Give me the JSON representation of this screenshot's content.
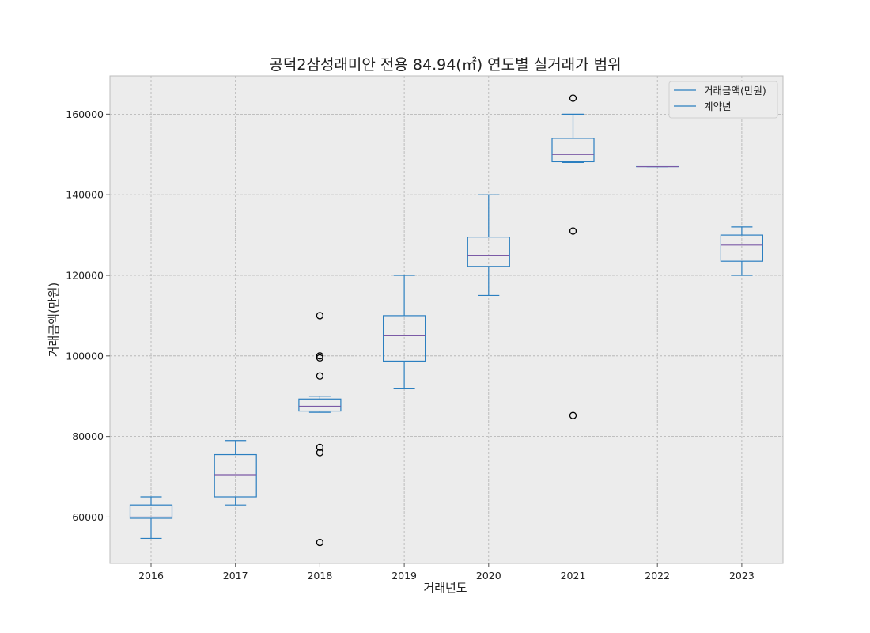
{
  "chart_data": {
    "type": "box",
    "title": "공덕2삼성래미안 전용 84.94(㎡) 연도별 실거래가 범위",
    "xlabel": "거래년도",
    "ylabel": "거래금액(만원)",
    "categories": [
      "2016",
      "2017",
      "2018",
      "2019",
      "2020",
      "2021",
      "2022",
      "2023"
    ],
    "ylim": [
      48500,
      169500
    ],
    "yticks": [
      60000,
      80000,
      100000,
      120000,
      140000,
      160000
    ],
    "ytick_labels": [
      "60000",
      "80000",
      "100000",
      "120000",
      "140000",
      "160000"
    ],
    "grid": true,
    "legend_position": "top-right",
    "legend": [
      "거래금액(만원)",
      "계약년"
    ],
    "boxes": [
      {
        "category": "2016",
        "whislo": 54700,
        "q1": 59700,
        "med": 60000,
        "q3": 63000,
        "whishi": 65000,
        "fliers": []
      },
      {
        "category": "2017",
        "whislo": 63000,
        "q1": 65000,
        "med": 70500,
        "q3": 75500,
        "whishi": 79000,
        "fliers": []
      },
      {
        "category": "2018",
        "whislo": 86000,
        "q1": 86300,
        "med": 87500,
        "q3": 89300,
        "whishi": 90000,
        "fliers": [
          110000,
          100000,
          99500,
          95000,
          77300,
          76000,
          53700
        ]
      },
      {
        "category": "2019",
        "whislo": 92000,
        "q1": 98700,
        "med": 105000,
        "q3": 110000,
        "whishi": 120000,
        "fliers": []
      },
      {
        "category": "2020",
        "whislo": 115000,
        "q1": 122200,
        "med": 125000,
        "q3": 129500,
        "whishi": 140000,
        "fliers": []
      },
      {
        "category": "2021",
        "whislo": 148000,
        "q1": 148200,
        "med": 150000,
        "q3": 154000,
        "whishi": 160000,
        "fliers": [
          164000,
          131000,
          85200
        ]
      },
      {
        "category": "2022",
        "whislo": 147000,
        "q1": 147000,
        "med": 147000,
        "q3": 147000,
        "whishi": 147000,
        "fliers": []
      },
      {
        "category": "2023",
        "whislo": 120000,
        "q1": 123500,
        "med": 127500,
        "q3": 130000,
        "whishi": 132000,
        "fliers": []
      }
    ],
    "colors": {
      "box": "#2b7fc0",
      "median": "#7b5aa6",
      "flier": "#000000",
      "plot_bg": "#ececec",
      "grid": "#b0b0b0",
      "frame": "#bcbcbc"
    }
  }
}
